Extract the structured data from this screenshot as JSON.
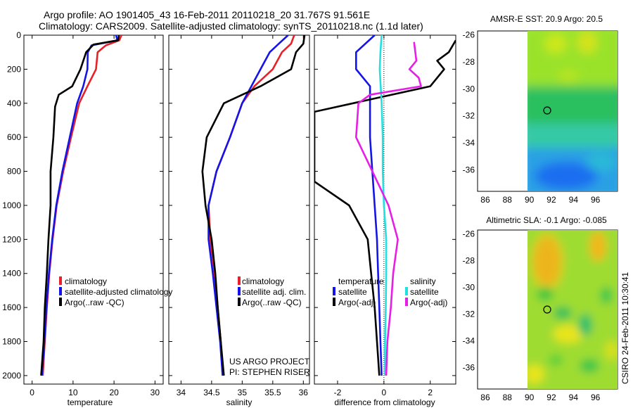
{
  "header": {
    "line1": "Argo profile: AO 1901405_43 16-Feb-2011 20110218_20 31.767S 91.561E",
    "line2": "Climatology: CARS2009. Satellite-adjusted climatology: synTS_20110218.nc (1.1d later)"
  },
  "side_text": "CSIRO 24-Feb-2011 10:30:41",
  "colors": {
    "red": "#e8202a",
    "blue": "#1414e6",
    "black": "#000000",
    "cyan": "#22e0e0",
    "magenta": "#e61ee6"
  },
  "chart_data": [
    {
      "id": "temperature",
      "type": "line",
      "xlabel": "temperature",
      "ylabel": "",
      "xlim": [
        -2,
        32
      ],
      "ylim": [
        2050,
        0
      ],
      "xticks": [
        0,
        10,
        20,
        30
      ],
      "yticks": [
        0,
        200,
        400,
        600,
        800,
        1000,
        1200,
        1400,
        1600,
        1800,
        2000
      ],
      "legend": {
        "location": "lower-left",
        "entries": [
          "climatology",
          "satellite-adjusted climatology",
          "Argo(..raw -QC)"
        ]
      },
      "series": [
        {
          "name": "climatology",
          "color": "red",
          "points": [
            [
              21.8,
              0
            ],
            [
              21.3,
              30
            ],
            [
              18,
              60
            ],
            [
              16,
              100
            ],
            [
              15.6,
              200
            ],
            [
              13.5,
              300
            ],
            [
              11.5,
              400
            ],
            [
              9.5,
              600
            ],
            [
              7.6,
              800
            ],
            [
              6,
              1000
            ],
            [
              5,
              1200
            ],
            [
              4.2,
              1400
            ],
            [
              3.6,
              1600
            ],
            [
              3.1,
              1800
            ],
            [
              2.6,
              2000
            ]
          ]
        },
        {
          "name": "satellite-adjusted climatology",
          "color": "blue",
          "points": [
            [
              20.5,
              0
            ],
            [
              20.8,
              30
            ],
            [
              14.5,
              60
            ],
            [
              13.6,
              100
            ],
            [
              13.5,
              200
            ],
            [
              12.5,
              300
            ],
            [
              11,
              400
            ],
            [
              9.2,
              600
            ],
            [
              7.4,
              800
            ],
            [
              5.9,
              1000
            ],
            [
              4.9,
              1200
            ],
            [
              4.1,
              1400
            ],
            [
              3.5,
              1600
            ],
            [
              3,
              1800
            ],
            [
              2.4,
              2000
            ]
          ]
        },
        {
          "name": "Argo(..raw -QC)",
          "color": "black",
          "points": [
            [
              21.2,
              0
            ],
            [
              21,
              30
            ],
            [
              15,
              55
            ],
            [
              13.2,
              100
            ],
            [
              11.8,
              200
            ],
            [
              9.8,
              300
            ],
            [
              6.5,
              350
            ],
            [
              5.6,
              420
            ],
            [
              5.2,
              600
            ],
            [
              4.5,
              800
            ],
            [
              4.5,
              1000
            ],
            [
              4,
              1200
            ],
            [
              3.6,
              1400
            ],
            [
              3.1,
              1600
            ],
            [
              2.8,
              1800
            ],
            [
              2.2,
              2000
            ]
          ]
        }
      ]
    },
    {
      "id": "salinity",
      "type": "line",
      "xlabel": "salinity",
      "ylabel": "",
      "xlim": [
        33.8,
        36.1
      ],
      "ylim": [
        2050,
        0
      ],
      "xticks": [
        34,
        34.5,
        35,
        35.5,
        36
      ],
      "legend": {
        "location": "lower-left",
        "entries": [
          "climatology",
          "satellite adj. clim.",
          "Argo(..raw -QC)"
        ]
      },
      "annotation": [
        "US ARGO PROJECT",
        "PI: STEPHEN RISER"
      ],
      "series": [
        {
          "name": "climatology",
          "color": "red",
          "points": [
            [
              35.85,
              0
            ],
            [
              35.8,
              50
            ],
            [
              35.65,
              100
            ],
            [
              35.5,
              200
            ],
            [
              35.2,
              300
            ],
            [
              35,
              400
            ],
            [
              34.8,
              600
            ],
            [
              34.58,
              800
            ],
            [
              34.45,
              1000
            ],
            [
              34.48,
              1200
            ],
            [
              34.55,
              1400
            ],
            [
              34.6,
              1600
            ],
            [
              34.65,
              1800
            ],
            [
              34.68,
              2000
            ]
          ]
        },
        {
          "name": "satellite adj. clim.",
          "color": "blue",
          "points": [
            [
              35.75,
              0
            ],
            [
              35.6,
              50
            ],
            [
              35.45,
              100
            ],
            [
              35.3,
              200
            ],
            [
              35.15,
              300
            ],
            [
              35,
              400
            ],
            [
              34.8,
              600
            ],
            [
              34.58,
              800
            ],
            [
              34.45,
              1000
            ],
            [
              34.45,
              1200
            ],
            [
              34.52,
              1400
            ],
            [
              34.58,
              1600
            ],
            [
              34.64,
              1800
            ],
            [
              34.68,
              2000
            ]
          ]
        },
        {
          "name": "Argo(..raw -QC)",
          "color": "black",
          "points": [
            [
              36.02,
              0
            ],
            [
              36,
              50
            ],
            [
              35.88,
              100
            ],
            [
              35.8,
              200
            ],
            [
              35.3,
              300
            ],
            [
              34.7,
              400
            ],
            [
              34.42,
              600
            ],
            [
              34.35,
              800
            ],
            [
              34.4,
              1000
            ],
            [
              34.5,
              1200
            ],
            [
              34.56,
              1400
            ],
            [
              34.6,
              1600
            ],
            [
              34.65,
              1800
            ],
            [
              34.7,
              2000
            ]
          ]
        }
      ]
    },
    {
      "id": "difference",
      "type": "line",
      "xlabel": "difference from climatology",
      "ylabel": "",
      "xlim": [
        -3,
        3.1
      ],
      "ylim": [
        2050,
        0
      ],
      "xticks": [
        -2,
        0,
        2
      ],
      "zero_line": true,
      "legend": {
        "location": "lower-left",
        "groups": [
          {
            "title": "temperature",
            "entries": [
              "satellite",
              "Argo(-adj)"
            ]
          },
          {
            "title": "salinity",
            "entries": [
              "satellite",
              "Argo(-adj)"
            ]
          }
        ]
      },
      "series": [
        {
          "name": "temperature satellite",
          "color": "blue",
          "points": [
            [
              -0.4,
              0
            ],
            [
              -1.2,
              100
            ],
            [
              -1.2,
              200
            ],
            [
              -0.6,
              300
            ],
            [
              -0.6,
              400
            ],
            [
              -0.6,
              600
            ],
            [
              -0.5,
              800
            ],
            [
              -0.4,
              1000
            ],
            [
              -0.3,
              1200
            ],
            [
              -0.25,
              1400
            ],
            [
              -0.2,
              1600
            ],
            [
              -0.15,
              1800
            ],
            [
              -0.1,
              2000
            ]
          ]
        },
        {
          "name": "temperature Argo(-adj)",
          "color": "black",
          "points": [
            [
              3.1,
              30
            ],
            [
              2.8,
              100
            ],
            [
              2.3,
              150
            ],
            [
              2.6,
              200
            ],
            [
              2,
              300
            ],
            [
              -3,
              450
            ],
            [
              -3,
              860
            ],
            [
              -1.5,
              1000
            ],
            [
              -0.7,
              1200
            ],
            [
              -0.55,
              1400
            ],
            [
              -0.4,
              1600
            ],
            [
              -0.3,
              1800
            ],
            [
              -0.2,
              2000
            ]
          ]
        },
        {
          "name": "salinity satellite",
          "color": "cyan",
          "points": [
            [
              -0.1,
              0
            ],
            [
              -0.15,
              100
            ],
            [
              -0.18,
              200
            ],
            [
              -0.1,
              400
            ],
            [
              -0.05,
              600
            ],
            [
              -0.05,
              800
            ],
            [
              0,
              1000
            ],
            [
              0.1,
              1200
            ],
            [
              0.1,
              1400
            ],
            [
              0.08,
              1600
            ],
            [
              0.05,
              1800
            ],
            [
              0.05,
              2000
            ]
          ]
        },
        {
          "name": "salinity Argo(-adj)",
          "color": "magenta",
          "points": [
            [
              1.3,
              40
            ],
            [
              1.4,
              150
            ],
            [
              1.1,
              200
            ],
            [
              1.5,
              250
            ],
            [
              1.6,
              300
            ],
            [
              -0.6,
              350
            ],
            [
              -1.1,
              400
            ],
            [
              -1.2,
              600
            ],
            [
              -0.5,
              800
            ],
            [
              0.2,
              1000
            ],
            [
              0.6,
              1200
            ],
            [
              0.4,
              1400
            ],
            [
              0.3,
              1600
            ],
            [
              0.15,
              1800
            ],
            [
              0.1,
              2000
            ]
          ]
        }
      ]
    },
    {
      "id": "sst_map",
      "type": "heatmap",
      "title": "AMSR-E SST: 20.9 Argo: 20.5",
      "xlim": [
        85.3,
        98
      ],
      "ylim": [
        -37.6,
        -25.7
      ],
      "xticks": [
        86,
        88,
        90,
        92,
        94,
        96
      ],
      "yticks": [
        -26,
        -28,
        -30,
        -32,
        -34,
        -36
      ],
      "data_xlim": [
        90,
        98
      ],
      "argo_location": [
        91.56,
        -31.77
      ]
    },
    {
      "id": "sla_map",
      "type": "heatmap",
      "title": "Altimetric SLA: -0.1 Argo: -0.085",
      "xlim": [
        85.3,
        98
      ],
      "ylim": [
        -37.6,
        -25.7
      ],
      "xticks": [
        86,
        88,
        90,
        92,
        94,
        96
      ],
      "yticks": [
        -26,
        -28,
        -30,
        -32,
        -34,
        -36
      ],
      "data_xlim": [
        90,
        98
      ],
      "argo_location": [
        91.56,
        -31.77
      ]
    }
  ]
}
